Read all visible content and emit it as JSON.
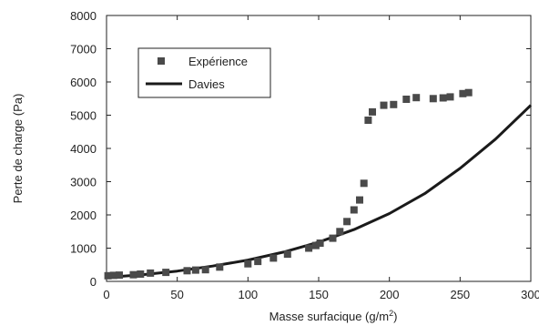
{
  "chart_data": {
    "type": "scatter",
    "title": "",
    "xlabel": "Masse surfacique (g/m",
    "xlabel_sup": "2",
    "xlabel_end": ")",
    "ylabel": "Perte de charge (Pa)",
    "xlim": [
      0,
      300
    ],
    "ylim": [
      0,
      8000
    ],
    "x_ticks": [
      0,
      50,
      100,
      150,
      200,
      250,
      300
    ],
    "y_ticks": [
      0,
      1000,
      2000,
      3000,
      4000,
      5000,
      6000,
      7000,
      8000
    ],
    "grid": false,
    "legend_position": "top-left",
    "series": [
      {
        "name": "Expérience",
        "kind": "markers",
        "marker": "square",
        "color": "#4a4a4a",
        "points": [
          [
            1,
            170
          ],
          [
            5,
            180
          ],
          [
            9,
            190
          ],
          [
            19,
            200
          ],
          [
            24,
            220
          ],
          [
            31,
            250
          ],
          [
            42,
            270
          ],
          [
            57,
            320
          ],
          [
            63,
            340
          ],
          [
            70,
            350
          ],
          [
            80,
            430
          ],
          [
            100,
            530
          ],
          [
            107,
            600
          ],
          [
            118,
            700
          ],
          [
            128,
            820
          ],
          [
            143,
            1000
          ],
          [
            148,
            1080
          ],
          [
            151,
            1150
          ],
          [
            160,
            1300
          ],
          [
            165,
            1500
          ],
          [
            170,
            1800
          ],
          [
            175,
            2150
          ],
          [
            179,
            2450
          ],
          [
            182,
            2950
          ],
          [
            185,
            4850
          ],
          [
            188,
            5100
          ],
          [
            196,
            5300
          ],
          [
            203,
            5320
          ],
          [
            212,
            5480
          ],
          [
            219,
            5530
          ],
          [
            231,
            5500
          ],
          [
            238,
            5520
          ],
          [
            243,
            5550
          ],
          [
            252,
            5650
          ],
          [
            256,
            5680
          ]
        ]
      },
      {
        "name": "Davies",
        "kind": "line",
        "color": "#1a1a1a",
        "points": [
          [
            0,
            120
          ],
          [
            25,
            200
          ],
          [
            50,
            310
          ],
          [
            75,
            460
          ],
          [
            100,
            640
          ],
          [
            125,
            880
          ],
          [
            150,
            1180
          ],
          [
            175,
            1560
          ],
          [
            200,
            2040
          ],
          [
            225,
            2640
          ],
          [
            250,
            3400
          ],
          [
            275,
            4280
          ],
          [
            300,
            5300
          ]
        ]
      }
    ]
  }
}
